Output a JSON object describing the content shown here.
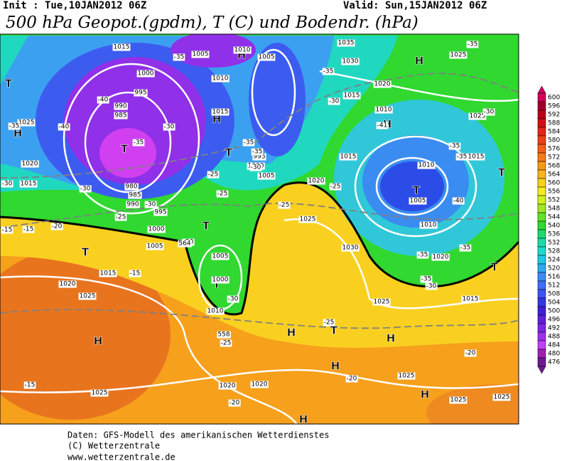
{
  "header": {
    "init": "Init : Tue,10JAN2012 06Z",
    "valid": "Valid: Sun,15JAN2012 06Z",
    "title": "500 hPa Geopot.(gpdm), T (C) und Bodendr. (hPa)"
  },
  "footer": [
    "Daten: GFS-Modell des amerikanischen Wetterdienstes",
    "(C) Wetterzentrale",
    "www.wetterzentrale.de"
  ],
  "colorbar": {
    "levels": [
      600,
      596,
      592,
      588,
      584,
      580,
      576,
      572,
      568,
      564,
      560,
      556,
      552,
      548,
      544,
      540,
      536,
      532,
      528,
      524,
      520,
      516,
      512,
      508,
      504,
      500,
      496,
      492,
      488,
      484,
      480,
      476
    ]
  },
  "map": {
    "centers": [
      "H",
      "H",
      "H",
      "H",
      "H",
      "H",
      "H",
      "H",
      "H",
      "H",
      "H",
      "T",
      "T",
      "T",
      "T",
      "T",
      "T",
      "T",
      "T",
      "T",
      "T"
    ],
    "labels": [
      "1015",
      "1005",
      "1010",
      "1005",
      "1000",
      "995",
      "990",
      "985",
      "1010",
      "1015",
      "995",
      "1000",
      "1005",
      "1025",
      "1020",
      "1015",
      "980",
      "985",
      "990",
      "995",
      "1000",
      "1005",
      "1015",
      "1020",
      "1025",
      "1025",
      "1020",
      "1020",
      "1025",
      "1030",
      "1025",
      "1015",
      "1025",
      "1025",
      "1025",
      "1010",
      "1005",
      "1010",
      "1020",
      "1015",
      "1010",
      "1025",
      "1035",
      "1030",
      "1025",
      "1015",
      "1020",
      "1015",
      "1005",
      "1000",
      "1010",
      "1020",
      "-35",
      "-40",
      "-40",
      "-35",
      "-30",
      "-30",
      "-30",
      "-30",
      "-35",
      "-35",
      "-35",
      "-30",
      "-25",
      "-30",
      "-35",
      "-41",
      "-25",
      "-25",
      "-25",
      "-25",
      "-20",
      "-15",
      "-15",
      "-20",
      "-15",
      "-30",
      "-25",
      "-25",
      "-20",
      "-20",
      "-15",
      "-20",
      "-40",
      "-35",
      "-35",
      "-35",
      "-30",
      "-30",
      "-35",
      "-35",
      "-35",
      "564",
      "558"
    ]
  }
}
